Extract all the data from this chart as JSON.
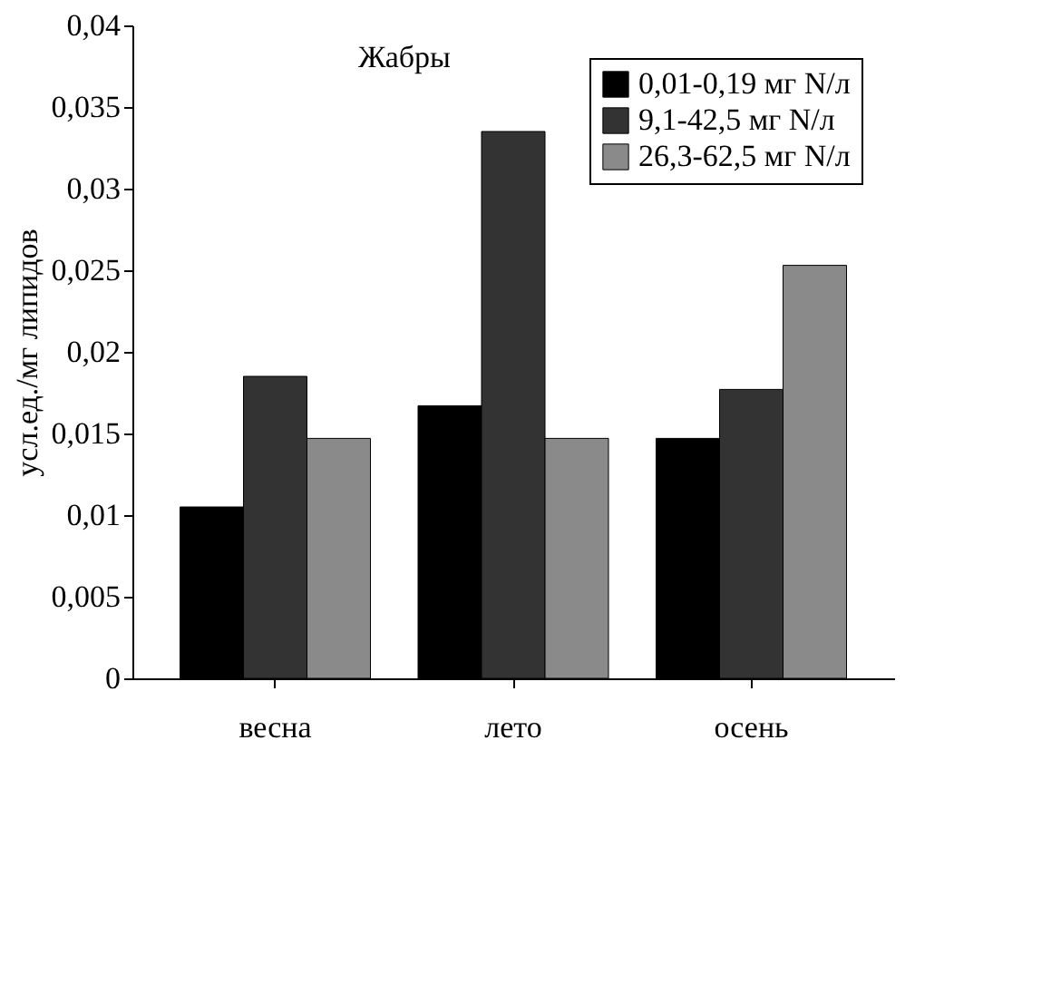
{
  "chart_data": {
    "type": "bar",
    "title": "Жабры",
    "ylabel": "усл.ед./мг липидов",
    "categories": [
      "весна",
      "лето",
      "осень"
    ],
    "series": [
      {
        "name": "0,01-0,19 мг N/л",
        "color": "#000000",
        "values": [
          0.0105,
          0.0167,
          0.0147
        ]
      },
      {
        "name": "9,1-42,5 мг N/л",
        "color": "#333333",
        "values": [
          0.0185,
          0.0335,
          0.0177
        ]
      },
      {
        "name": "26,3-62,5 мг N/л",
        "color": "#8a8a8a",
        "values": [
          0.0147,
          0.0147,
          0.0253
        ]
      }
    ],
    "ylim": [
      0,
      0.04
    ],
    "yticks": [
      0,
      {
        "value": 0.005,
        "label": "0,005"
      },
      {
        "value": 0.01,
        "label": "0,01"
      },
      {
        "value": 0.015,
        "label": "0,015"
      },
      {
        "value": 0.02,
        "label": "0,02"
      },
      {
        "value": 0.025,
        "label": "0,025"
      },
      {
        "value": 0.03,
        "label": "0,03"
      },
      {
        "value": 0.035,
        "label": "0,035"
      },
      {
        "value": 0.04,
        "label": "0,04"
      }
    ],
    "grid": false,
    "legend": "top right"
  }
}
